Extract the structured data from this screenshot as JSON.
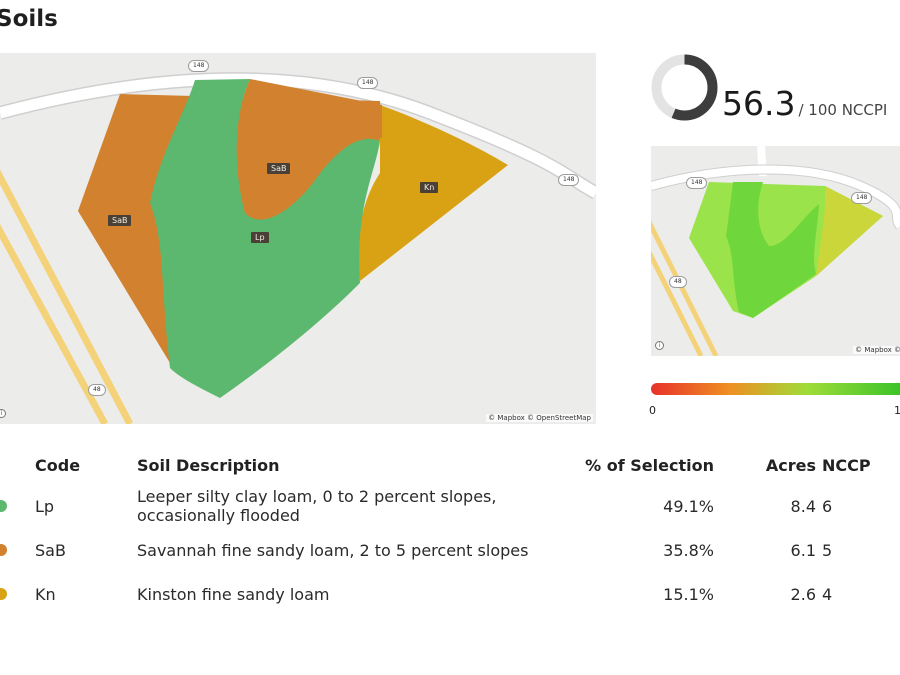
{
  "page": {
    "title": "Soils"
  },
  "main_map": {
    "soil_labels": [
      "SaB",
      "SaB",
      "Lp",
      "Kn"
    ],
    "road_shields": [
      "148",
      "148",
      "148",
      "48"
    ],
    "attribution": "© Mapbox © OpenStreetMap",
    "colors": {
      "Lp": "#5cb86e",
      "SaB": "#d2812e",
      "Kn": "#d9a214",
      "road": "#ffffff",
      "highway": "#f3d27a",
      "background": "#ececea"
    }
  },
  "score": {
    "value": "56.3",
    "suffix": "/ 100 NCCPI",
    "fraction": 0.563,
    "ring_color": "#3d3d3d",
    "ring_track": "#e3e3e3"
  },
  "mini_map": {
    "road_shields": [
      "148",
      "148",
      "48"
    ],
    "attribution": "© Mapbox © OpenStreetMap"
  },
  "legend_scale": {
    "min_label": "0",
    "max_label": "1"
  },
  "table": {
    "headers": {
      "code": "Code",
      "description": "Soil Description",
      "pct": "% of Selection",
      "acres": "Acres",
      "nccpi": "NCCP"
    },
    "rows": [
      {
        "color": "#5cb86e",
        "code": "Lp",
        "description": "Leeper silty clay loam, 0 to 2 percent slopes, occasionally flooded",
        "pct": "49.1%",
        "acres": "8.4",
        "nccpi": "6"
      },
      {
        "color": "#d2812e",
        "code": "SaB",
        "description": "Savannah fine sandy loam, 2 to 5 percent slopes",
        "pct": "35.8%",
        "acres": "6.1",
        "nccpi": "5"
      },
      {
        "color": "#d9a214",
        "code": "Kn",
        "description": "Kinston fine sandy loam",
        "pct": "15.1%",
        "acres": "2.6",
        "nccpi": "4"
      }
    ]
  }
}
